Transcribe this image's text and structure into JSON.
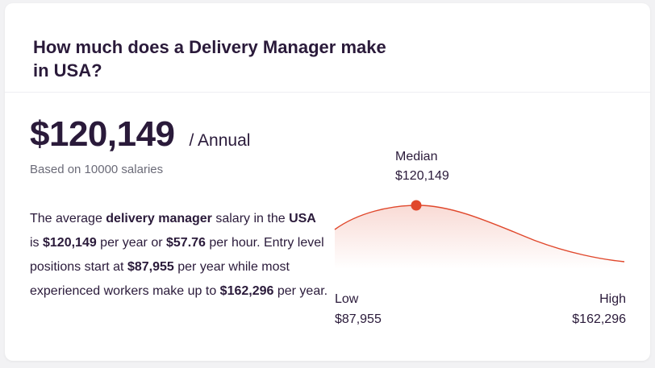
{
  "card": {
    "title": "How much does a Delivery Manager make in USA?"
  },
  "salary": {
    "amount": "$120,149",
    "period": "/ Annual",
    "based_on": "Based on 10000 salaries"
  },
  "description": {
    "p1": "The average ",
    "job": "delivery manager",
    "p2": " salary in the ",
    "location": "USA",
    "p3": " is ",
    "annual": "$120,149",
    "p4": " per year or ",
    "hourly": "$57.76",
    "p5": " per hour. Entry level positions start at ",
    "entry": "$87,955",
    "p6": " per year while most experienced workers make up to ",
    "top": "$162,296",
    "p7": " per year."
  },
  "distribution": {
    "median_label": "Median",
    "median_value": "$120,149",
    "low_label": "Low",
    "low_value": "$87,955",
    "high_label": "High",
    "high_value": "$162,296"
  },
  "colors": {
    "accent": "#e0472b",
    "text": "#2a1a3a",
    "muted": "#6b6b78"
  }
}
